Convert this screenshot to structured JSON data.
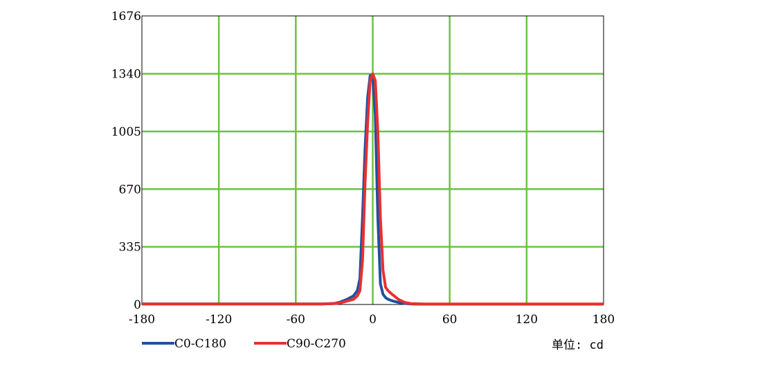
{
  "chart_data": {
    "type": "line",
    "xlim": [
      -180,
      180
    ],
    "ylim": [
      0,
      1676
    ],
    "x_ticks": [
      -180,
      -120,
      -60,
      0,
      60,
      120,
      180
    ],
    "x_tick_labels": [
      "-180",
      "-120",
      "-60",
      "0",
      "60",
      "120",
      "180"
    ],
    "y_ticks": [
      0,
      335,
      670,
      1005,
      1340,
      1676
    ],
    "y_tick_labels": [
      "0",
      "335",
      "670",
      "1005",
      "1340",
      "1676"
    ],
    "grid": true,
    "grid_color": "#6cc23f",
    "legend_position": "bottom-left",
    "unit_label": "单位: cd",
    "series": [
      {
        "name": "C0-C180",
        "color": "#2050a0",
        "x": [
          -180,
          -40,
          -30,
          -25,
          -20,
          -15,
          -12,
          -10,
          -8,
          -6,
          -4,
          -2,
          0,
          2,
          4,
          6,
          8,
          10,
          12,
          15,
          20,
          25,
          30,
          40,
          180
        ],
        "y": [
          3,
          3,
          6,
          15,
          30,
          50,
          80,
          150,
          500,
          900,
          1200,
          1330,
          1320,
          1100,
          500,
          120,
          60,
          40,
          30,
          22,
          12,
          6,
          3,
          2,
          2
        ]
      },
      {
        "name": "C90-C270",
        "color": "#e83030",
        "x": [
          -180,
          -40,
          -30,
          -25,
          -20,
          -15,
          -12,
          -10,
          -8,
          -6,
          -4,
          -2,
          0,
          2,
          4,
          6,
          8,
          10,
          12,
          15,
          20,
          25,
          30,
          40,
          180
        ],
        "y": [
          3,
          3,
          5,
          10,
          20,
          30,
          50,
          80,
          250,
          700,
          1050,
          1300,
          1340,
          1300,
          1000,
          500,
          200,
          100,
          80,
          60,
          30,
          12,
          5,
          3,
          3
        ]
      }
    ]
  }
}
